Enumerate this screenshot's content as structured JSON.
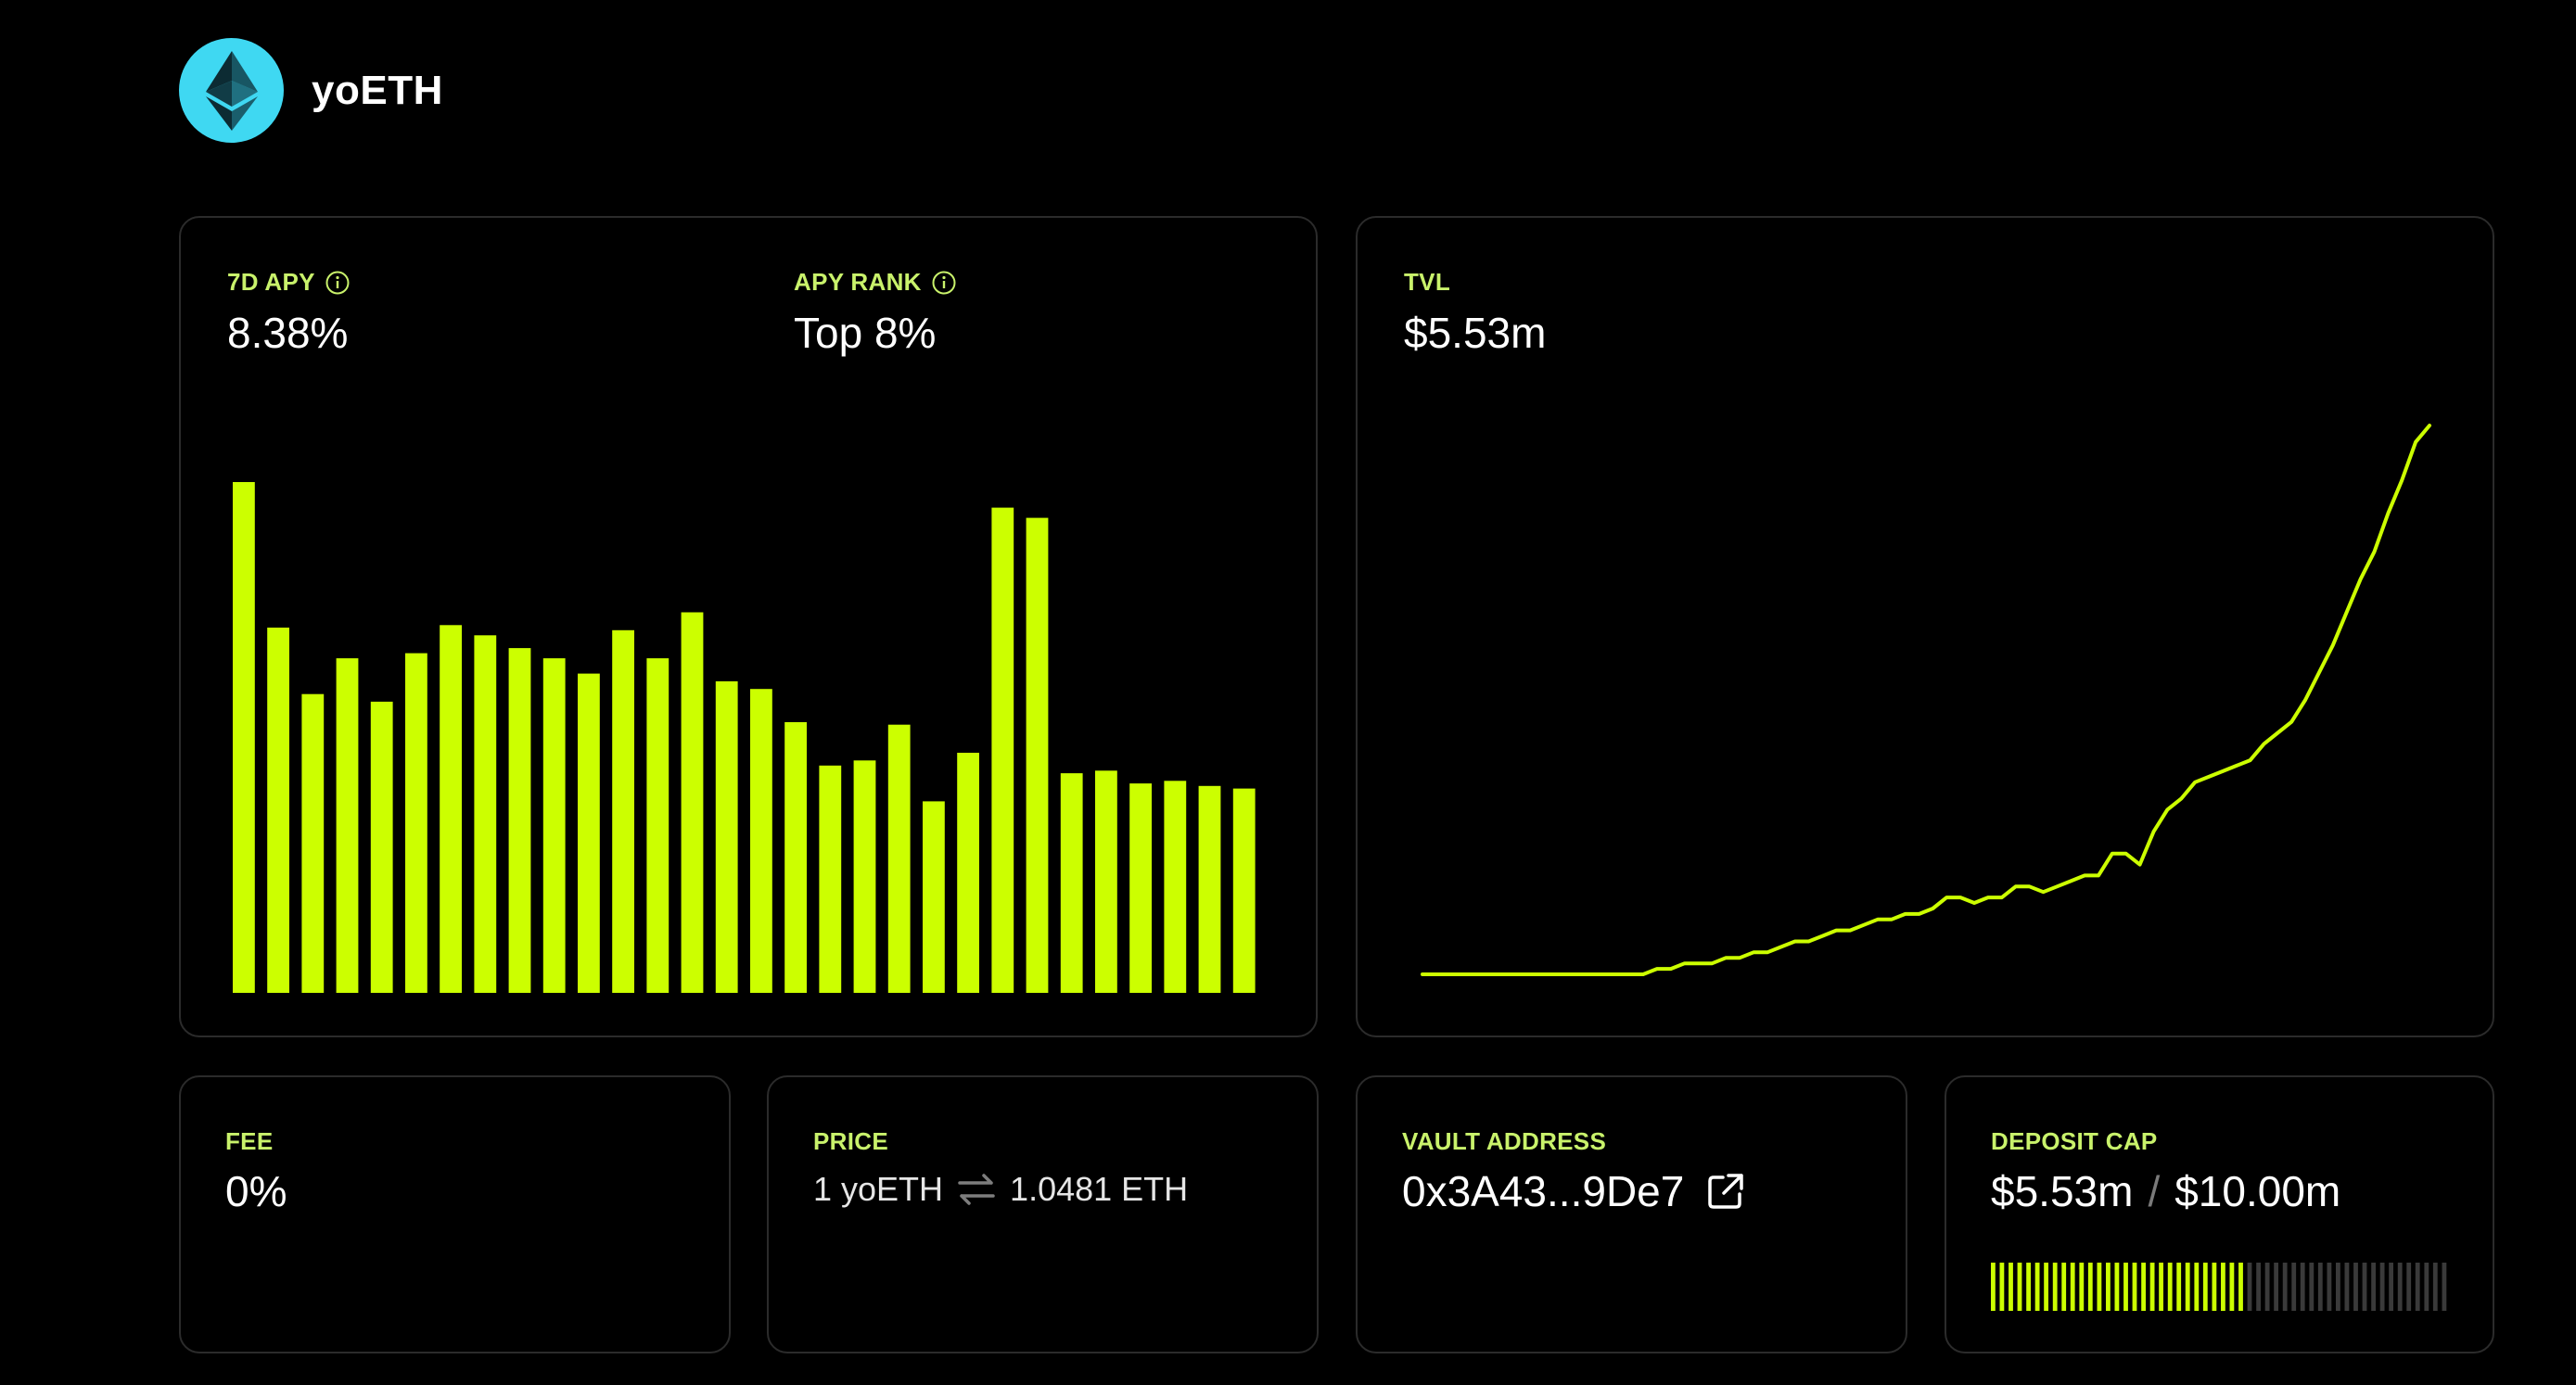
{
  "vault": {
    "name": "yoETH",
    "logo_icon": "ethereum-icon",
    "logo_color": "#3fd8f2"
  },
  "colors": {
    "accent": "#ccff00",
    "label": "#c9f26b",
    "card_border": "#2b2b2b",
    "background": "#000000",
    "muted_tick": "#3a3a3a"
  },
  "apy": {
    "label": "7D APY",
    "value": "8.38%",
    "rank_label": "APY RANK",
    "rank_value": "Top 8%"
  },
  "tvl": {
    "label": "TVL",
    "value": "$5.53m"
  },
  "fee": {
    "label": "FEE",
    "value": "0%"
  },
  "price": {
    "label": "PRICE",
    "from": "1 yoETH",
    "swap_icon": "swap-arrows-icon",
    "to": "1.0481 ETH"
  },
  "vault_address": {
    "label": "VAULT ADDRESS",
    "value": "0x3A43...9De7",
    "link_icon": "external-link-icon"
  },
  "deposit_cap": {
    "label": "DEPOSIT CAP",
    "current": "$5.53m",
    "separator": "/",
    "max": "$10.00m",
    "fill_fraction": 0.553
  },
  "chart_data": [
    {
      "type": "bar",
      "name": "apy-history",
      "values": [
        100,
        71.5,
        58.5,
        65.5,
        57,
        66.5,
        72,
        70,
        67.5,
        65.5,
        62.5,
        71,
        65.5,
        74.5,
        61,
        59.5,
        53,
        44.5,
        45.5,
        52.5,
        37.5,
        47,
        95,
        93,
        43,
        43.5,
        41,
        41.5,
        40.5,
        40
      ],
      "ylim": [
        0,
        100
      ]
    },
    {
      "type": "line",
      "name": "tvl-history",
      "values": [
        0,
        0,
        0,
        0,
        0,
        0,
        0,
        0,
        0,
        0,
        0,
        0,
        0,
        0,
        0,
        0,
        0,
        0.01,
        0.01,
        0.02,
        0.02,
        0.02,
        0.03,
        0.03,
        0.04,
        0.04,
        0.05,
        0.06,
        0.06,
        0.07,
        0.08,
        0.08,
        0.09,
        0.1,
        0.1,
        0.11,
        0.11,
        0.12,
        0.14,
        0.14,
        0.13,
        0.14,
        0.14,
        0.16,
        0.16,
        0.15,
        0.16,
        0.17,
        0.18,
        0.18,
        0.22,
        0.22,
        0.2,
        0.26,
        0.3,
        0.32,
        0.35,
        0.36,
        0.37,
        0.38,
        0.39,
        0.42,
        0.44,
        0.46,
        0.5,
        0.55,
        0.6,
        0.66,
        0.72,
        0.77,
        0.84,
        0.9,
        0.97,
        1.0
      ],
      "ylim": [
        0,
        1
      ]
    }
  ]
}
